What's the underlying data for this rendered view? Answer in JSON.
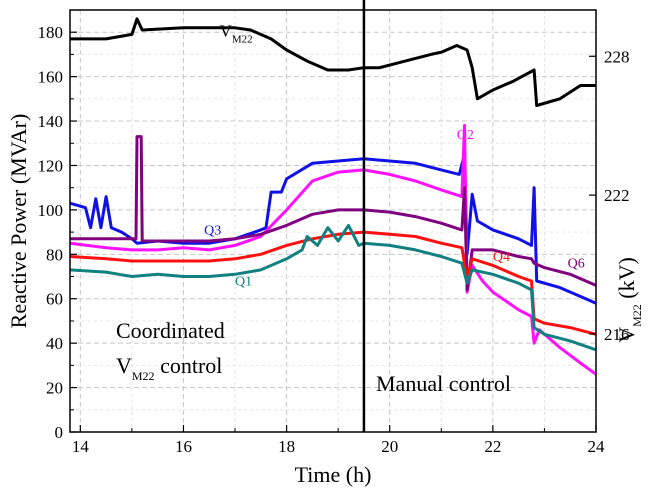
{
  "chart_data": {
    "type": "line",
    "xlabel": "Time (h)",
    "ylabel": "Reactive Power (MVAr)",
    "y2label": {
      "base": "V",
      "sub": "M22",
      "rest": " (kV)"
    },
    "xlim": [
      13.8,
      24
    ],
    "ylim": [
      0,
      190
    ],
    "y2lim": [
      211.76,
      230.0
    ],
    "x_ticks": [
      "14",
      "16",
      "18",
      "20",
      "22",
      "24"
    ],
    "y_ticks": [
      "0",
      "20",
      "40",
      "60",
      "80",
      "100",
      "120",
      "140",
      "160",
      "180"
    ],
    "y2_ticks": [
      "216",
      "222",
      "228"
    ],
    "grid": true,
    "divider_x": 19.5,
    "annotations": {
      "left_line1": "Coordinated",
      "left_line2_base": "V",
      "left_line2_sub": "M22",
      "left_line2_rest": " control",
      "right": "Manual control"
    },
    "series": [
      {
        "name": "V_M22",
        "label_base": "V",
        "label_sub": "M22",
        "color": "#000000",
        "axis": "right",
        "label_at": [
          16.7,
          178
        ],
        "points": [
          [
            13.8,
            177
          ],
          [
            14.5,
            177
          ],
          [
            15.0,
            179
          ],
          [
            15.1,
            186
          ],
          [
            15.2,
            181
          ],
          [
            16.0,
            182
          ],
          [
            16.5,
            182
          ],
          [
            17.0,
            182
          ],
          [
            17.3,
            181
          ],
          [
            17.7,
            177
          ],
          [
            18.0,
            172
          ],
          [
            18.4,
            167
          ],
          [
            18.8,
            163
          ],
          [
            19.2,
            163
          ],
          [
            19.5,
            164
          ],
          [
            19.8,
            164
          ],
          [
            20.3,
            167
          ],
          [
            20.8,
            170
          ],
          [
            21.0,
            171
          ],
          [
            21.3,
            174
          ],
          [
            21.5,
            172
          ],
          [
            21.6,
            164
          ],
          [
            21.7,
            150
          ],
          [
            22.0,
            154
          ],
          [
            22.4,
            158
          ],
          [
            22.8,
            163
          ],
          [
            22.85,
            147
          ],
          [
            23.3,
            150
          ],
          [
            23.7,
            156
          ],
          [
            24.0,
            156
          ]
        ]
      },
      {
        "name": "Q3",
        "label_base": "Q3",
        "color": "#1010e8",
        "axis": "left",
        "label_at": [
          16.4,
          89
        ],
        "points": [
          [
            13.8,
            103
          ],
          [
            14.1,
            101
          ],
          [
            14.2,
            92
          ],
          [
            14.3,
            105
          ],
          [
            14.4,
            92
          ],
          [
            14.5,
            106
          ],
          [
            14.6,
            92
          ],
          [
            14.8,
            90
          ],
          [
            15.0,
            87
          ],
          [
            15.1,
            85
          ],
          [
            15.5,
            86
          ],
          [
            16.0,
            85
          ],
          [
            16.5,
            85
          ],
          [
            17.0,
            87
          ],
          [
            17.5,
            91
          ],
          [
            17.6,
            92
          ],
          [
            17.7,
            108
          ],
          [
            17.9,
            108
          ],
          [
            18.0,
            114
          ],
          [
            18.5,
            121
          ],
          [
            19.0,
            122
          ],
          [
            19.5,
            123
          ],
          [
            20.0,
            122
          ],
          [
            20.5,
            121
          ],
          [
            21.0,
            118
          ],
          [
            21.35,
            116
          ],
          [
            21.45,
            125
          ],
          [
            21.5,
            80
          ],
          [
            21.6,
            107
          ],
          [
            21.7,
            95
          ],
          [
            22.0,
            91
          ],
          [
            22.5,
            87
          ],
          [
            22.75,
            84
          ],
          [
            22.8,
            110
          ],
          [
            22.85,
            68
          ],
          [
            23.3,
            65
          ],
          [
            23.7,
            61
          ],
          [
            24.0,
            58
          ]
        ]
      },
      {
        "name": "Q2",
        "label_base": "Q2",
        "color": "#ff10ff",
        "axis": "left",
        "label_at": [
          21.3,
          132
        ],
        "points": [
          [
            13.8,
            85
          ],
          [
            14.5,
            83
          ],
          [
            15.0,
            82
          ],
          [
            15.5,
            82
          ],
          [
            16.0,
            83
          ],
          [
            16.5,
            82
          ],
          [
            17.0,
            84
          ],
          [
            17.5,
            88
          ],
          [
            18.0,
            100
          ],
          [
            18.5,
            113
          ],
          [
            19.0,
            117
          ],
          [
            19.5,
            118
          ],
          [
            20.0,
            116
          ],
          [
            20.5,
            113
          ],
          [
            21.0,
            109
          ],
          [
            21.4,
            106
          ],
          [
            21.45,
            138
          ],
          [
            21.5,
            63
          ],
          [
            21.6,
            75
          ],
          [
            21.8,
            68
          ],
          [
            22.0,
            63
          ],
          [
            22.5,
            55
          ],
          [
            22.75,
            52
          ],
          [
            22.8,
            40
          ],
          [
            22.9,
            46
          ],
          [
            23.3,
            38
          ],
          [
            23.7,
            31
          ],
          [
            24.0,
            26
          ]
        ]
      },
      {
        "name": "Q6",
        "label_base": "Q6",
        "color": "#800080",
        "axis": "left",
        "label_at": [
          23.45,
          74
        ],
        "points": [
          [
            13.8,
            87
          ],
          [
            14.5,
            87
          ],
          [
            15.0,
            87
          ],
          [
            15.08,
            87
          ],
          [
            15.1,
            133
          ],
          [
            15.18,
            133
          ],
          [
            15.2,
            86
          ],
          [
            15.5,
            86
          ],
          [
            16.0,
            86
          ],
          [
            16.5,
            86
          ],
          [
            17.0,
            87
          ],
          [
            17.5,
            89
          ],
          [
            18.0,
            93
          ],
          [
            18.5,
            98
          ],
          [
            19.0,
            100
          ],
          [
            19.5,
            100
          ],
          [
            20.0,
            99
          ],
          [
            20.5,
            97
          ],
          [
            21.0,
            94
          ],
          [
            21.4,
            91
          ],
          [
            21.45,
            110
          ],
          [
            21.5,
            64
          ],
          [
            21.6,
            82
          ],
          [
            22.0,
            82
          ],
          [
            22.5,
            79
          ],
          [
            22.75,
            78
          ],
          [
            22.8,
            76
          ],
          [
            23.0,
            74
          ],
          [
            23.5,
            71
          ],
          [
            24.0,
            66
          ]
        ]
      },
      {
        "name": "Q4",
        "label_base": "Q4",
        "color": "#ff1010",
        "axis": "left",
        "label_at": [
          22.0,
          77
        ],
        "points": [
          [
            13.8,
            79
          ],
          [
            14.5,
            78
          ],
          [
            15.0,
            77
          ],
          [
            15.5,
            77
          ],
          [
            16.0,
            77
          ],
          [
            16.5,
            77
          ],
          [
            17.0,
            78
          ],
          [
            17.5,
            80
          ],
          [
            18.0,
            84
          ],
          [
            18.5,
            87
          ],
          [
            19.0,
            89
          ],
          [
            19.5,
            90
          ],
          [
            20.0,
            89
          ],
          [
            20.5,
            88
          ],
          [
            21.0,
            85
          ],
          [
            21.4,
            83
          ],
          [
            21.5,
            69
          ],
          [
            21.6,
            78
          ],
          [
            22.0,
            75
          ],
          [
            22.5,
            70
          ],
          [
            22.75,
            68
          ],
          [
            22.8,
            51
          ],
          [
            23.0,
            49
          ],
          [
            23.5,
            47
          ],
          [
            24.0,
            44
          ]
        ]
      },
      {
        "name": "Q1",
        "label_base": "Q1",
        "color": "#108080",
        "axis": "left",
        "label_at": [
          17.0,
          66
        ],
        "points": [
          [
            13.8,
            73
          ],
          [
            14.5,
            72
          ],
          [
            15.0,
            70
          ],
          [
            15.5,
            71
          ],
          [
            16.0,
            70
          ],
          [
            16.5,
            70
          ],
          [
            17.0,
            71
          ],
          [
            17.5,
            73
          ],
          [
            18.0,
            78
          ],
          [
            18.3,
            82
          ],
          [
            18.4,
            88
          ],
          [
            18.6,
            84
          ],
          [
            18.8,
            92
          ],
          [
            19.0,
            86
          ],
          [
            19.2,
            93
          ],
          [
            19.4,
            84
          ],
          [
            19.5,
            85
          ],
          [
            20.0,
            84
          ],
          [
            20.5,
            82
          ],
          [
            21.0,
            79
          ],
          [
            21.4,
            76
          ],
          [
            21.5,
            67
          ],
          [
            21.6,
            73
          ],
          [
            22.0,
            71
          ],
          [
            22.5,
            67
          ],
          [
            22.75,
            64
          ],
          [
            22.8,
            47
          ],
          [
            23.0,
            44
          ],
          [
            23.5,
            41
          ],
          [
            24.0,
            37
          ]
        ]
      }
    ]
  }
}
